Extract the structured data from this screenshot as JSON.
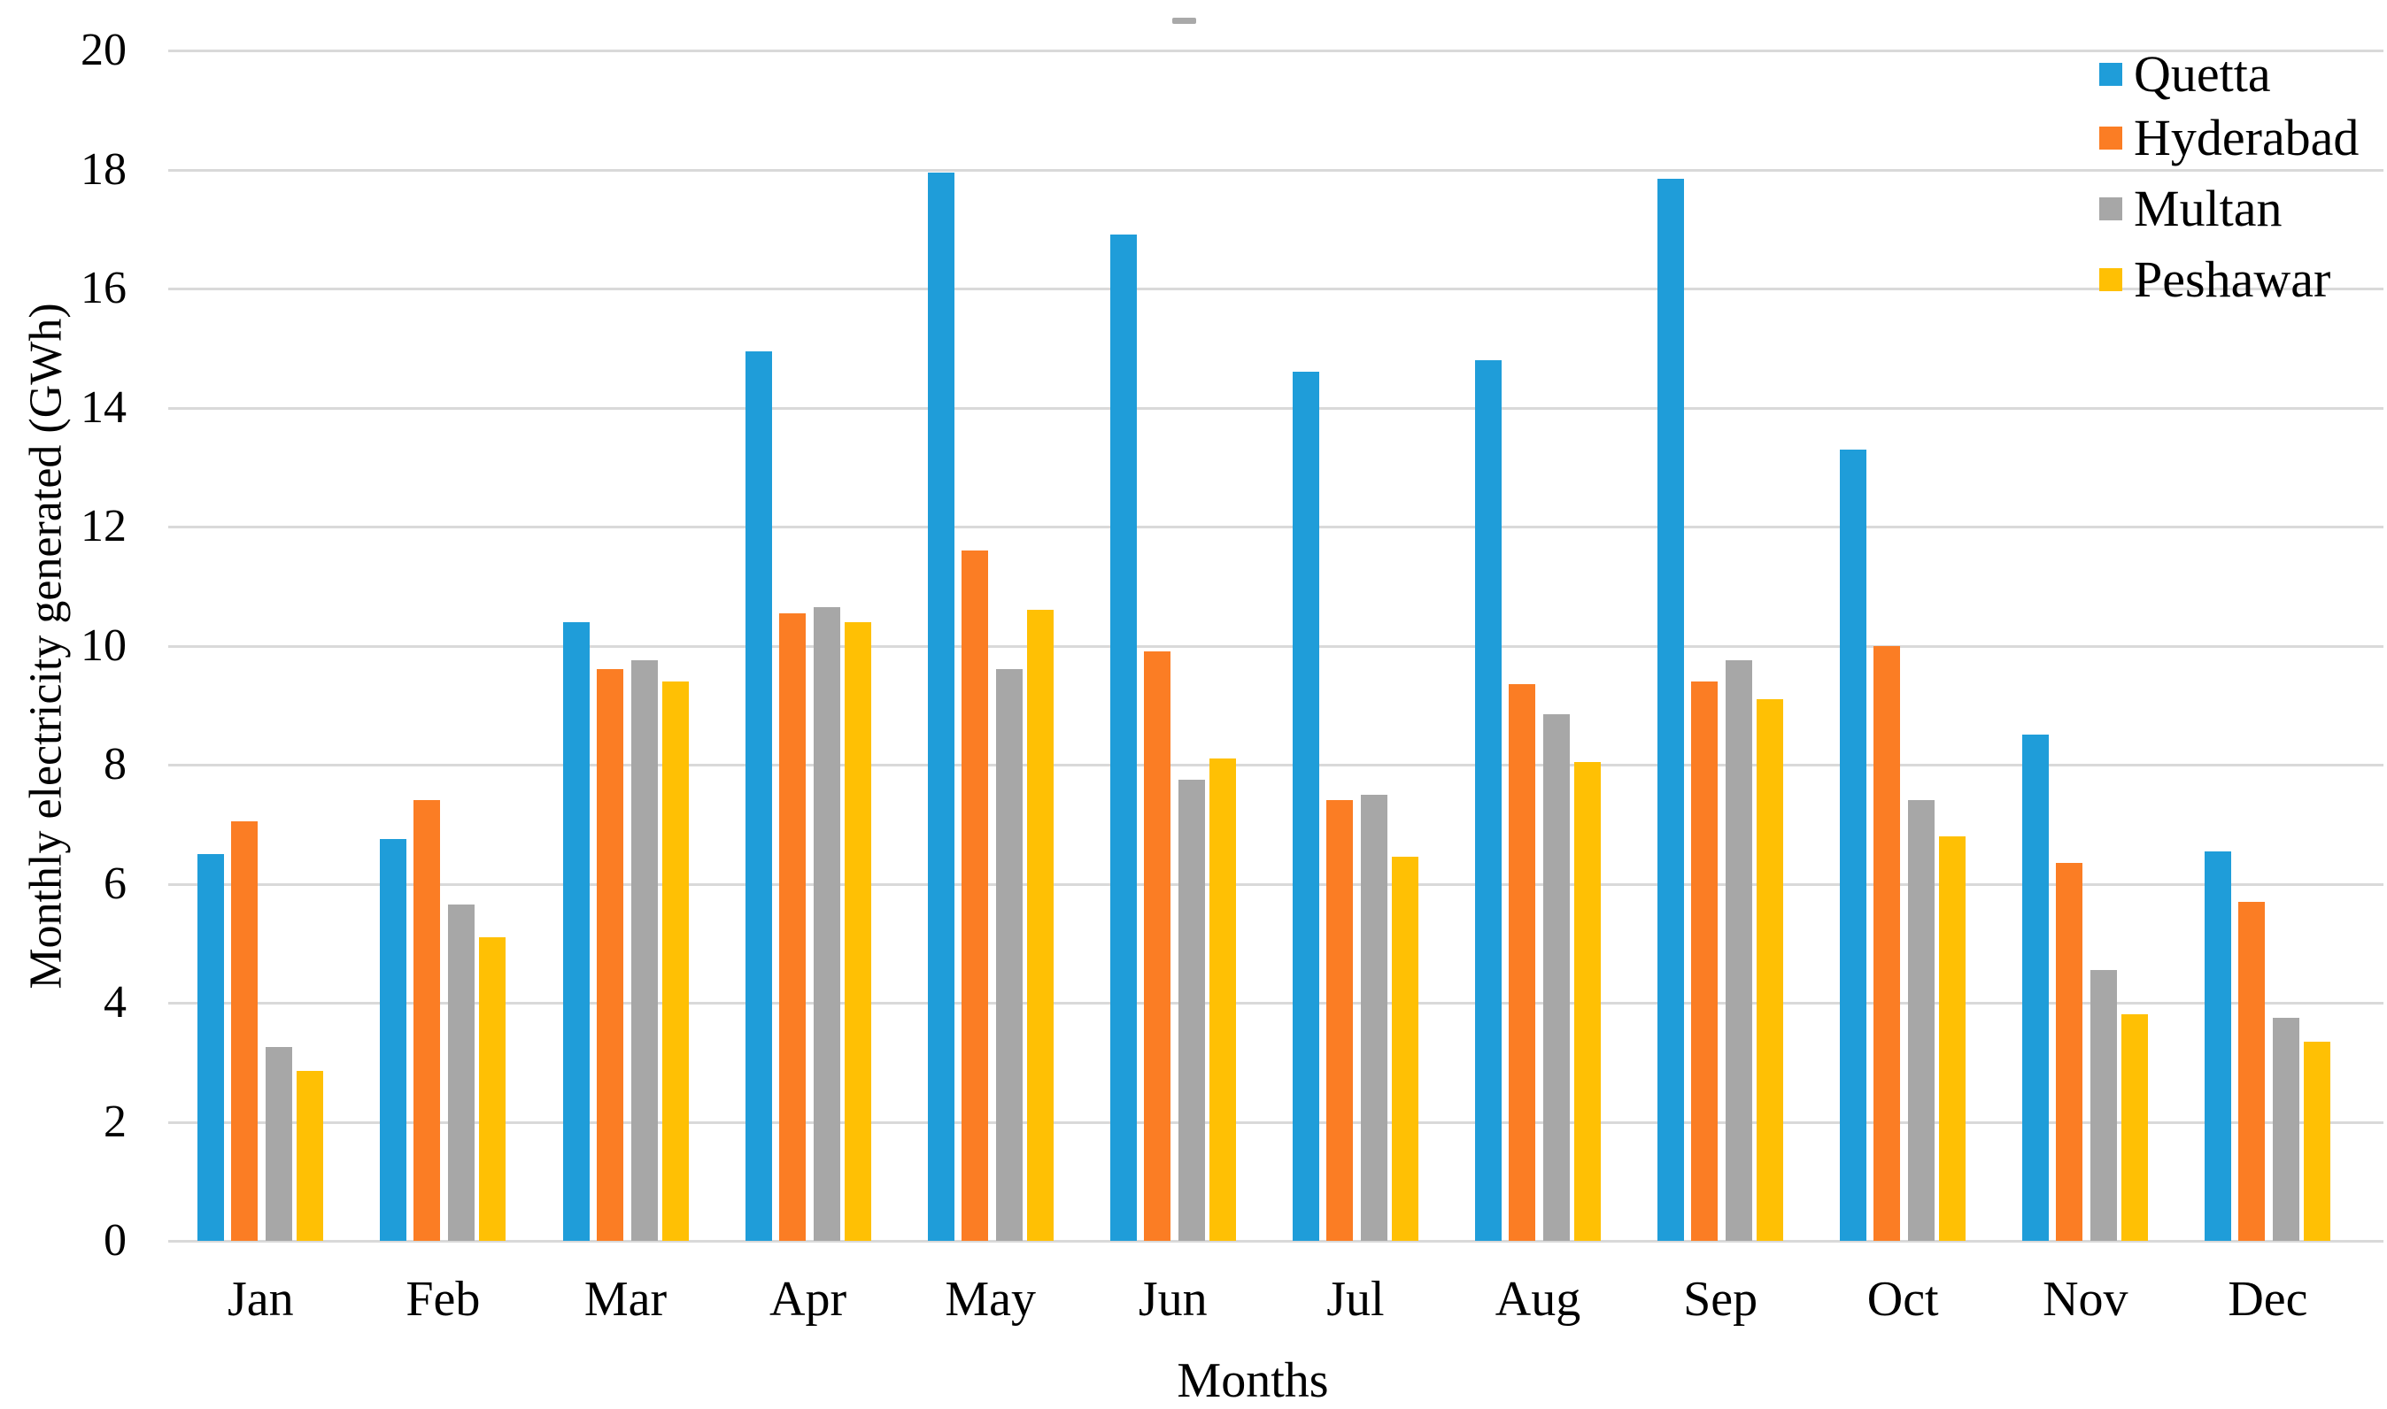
{
  "chart_data": {
    "type": "bar",
    "title": "",
    "xlabel": "Months",
    "ylabel": "Monthly electricity generated (GWh)",
    "ylim": [
      0,
      20
    ],
    "ytick_step": 2,
    "ytick_labels": [
      "0",
      "2",
      "4",
      "6",
      "8",
      "10",
      "12",
      "14",
      "16",
      "18",
      "20"
    ],
    "grid": true,
    "legend_position": "top-right",
    "categories": [
      "Jan",
      "Feb",
      "Mar",
      "Apr",
      "May",
      "Jun",
      "Jul",
      "Aug",
      "Sep",
      "Oct",
      "Nov",
      "Dec"
    ],
    "series": [
      {
        "name": "Quetta",
        "color": "#1F9DD9",
        "values": [
          6.5,
          6.75,
          10.4,
          14.95,
          17.95,
          16.9,
          14.6,
          14.8,
          17.85,
          13.3,
          8.5,
          6.55
        ]
      },
      {
        "name": "Hyderabad",
        "color": "#FB7D24",
        "values": [
          7.05,
          7.4,
          9.6,
          10.55,
          11.6,
          9.9,
          7.4,
          9.35,
          9.4,
          10.0,
          6.35,
          5.7
        ]
      },
      {
        "name": "Multan",
        "color": "#A7A7A7",
        "values": [
          3.25,
          5.65,
          9.75,
          10.65,
          9.6,
          7.75,
          7.5,
          8.85,
          9.75,
          7.4,
          4.55,
          3.75
        ]
      },
      {
        "name": "Peshawar",
        "color": "#FFC004",
        "values": [
          2.85,
          5.1,
          9.4,
          10.4,
          10.6,
          8.1,
          6.45,
          8.05,
          9.1,
          6.8,
          3.8,
          3.35
        ]
      }
    ],
    "colors": {
      "grid": "#D9D9D9",
      "axis": "#D9D9D9",
      "text": "#000000",
      "background": "#FFFFFF",
      "top_dash": "#A9A9A9"
    }
  }
}
